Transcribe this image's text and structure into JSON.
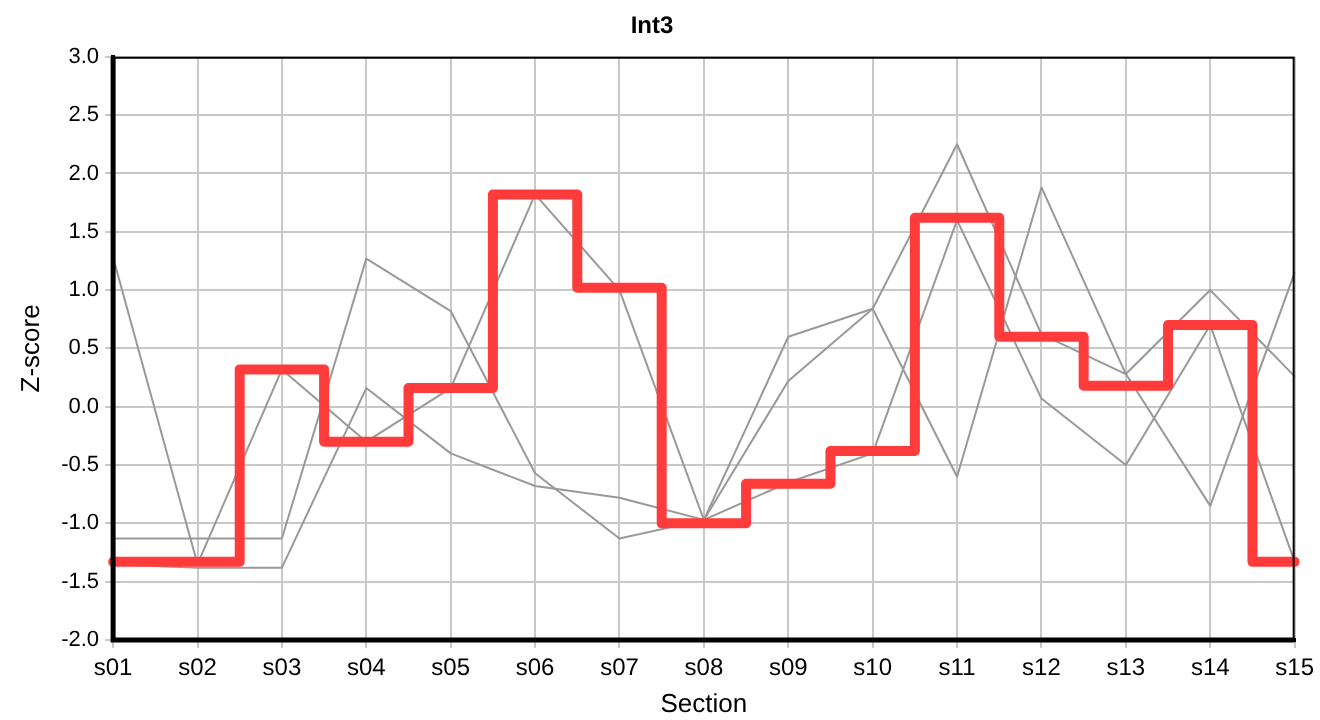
{
  "chart_data": {
    "type": "line",
    "title": "Int3",
    "xlabel": "Section",
    "ylabel": "Z-score",
    "categories": [
      "s01",
      "s02",
      "s03",
      "s04",
      "s05",
      "s06",
      "s07",
      "s08",
      "s09",
      "s10",
      "s11",
      "s12",
      "s13",
      "s14",
      "s15"
    ],
    "series": [
      {
        "type": "step",
        "color": "#ff3b3b",
        "values": [
          -1.33,
          -1.33,
          0.32,
          -0.3,
          0.16,
          1.82,
          1.02,
          -1.0,
          -0.66,
          -0.38,
          1.62,
          0.6,
          0.18,
          0.7,
          -1.33
        ]
      },
      {
        "color": "#999999",
        "values": [
          1.28,
          -1.35,
          0.32,
          -0.3,
          0.16,
          1.82,
          1.0,
          -0.97,
          0.22,
          0.84,
          -0.6,
          1.88,
          0.28,
          -0.85,
          1.15
        ]
      },
      {
        "color": "#999999",
        "values": [
          -1.13,
          -1.13,
          -1.13,
          1.27,
          0.82,
          -0.57,
          -1.13,
          -0.97,
          -0.65,
          -0.4,
          1.6,
          0.07,
          -0.5,
          0.7,
          -1.33
        ]
      },
      {
        "color": "#999999",
        "values": [
          -1.35,
          -1.38,
          -1.38,
          0.16,
          -0.4,
          -0.68,
          -0.78,
          -0.97,
          0.6,
          0.84,
          2.25,
          0.62,
          0.28,
          1.0,
          0.26
        ]
      }
    ],
    "ylim": [
      -2,
      3
    ],
    "yticks": [
      {
        "value": -2,
        "label": "-2.0"
      },
      {
        "value": -1.5,
        "label": "-1.5"
      },
      {
        "value": -1,
        "label": "-1.0"
      },
      {
        "value": -0.5,
        "label": "-0.5"
      },
      {
        "value": 0,
        "label": "0.0"
      },
      {
        "value": 0.5,
        "label": "0.5"
      },
      {
        "value": 1,
        "label": "1.0"
      },
      {
        "value": 1.5,
        "label": "1.5"
      },
      {
        "value": 2,
        "label": "2.0"
      },
      {
        "value": 2.5,
        "label": "2.5"
      },
      {
        "value": 3,
        "label": "3.0"
      }
    ],
    "grid": true,
    "legend": false,
    "marker": "none",
    "line_style": "solid"
  }
}
